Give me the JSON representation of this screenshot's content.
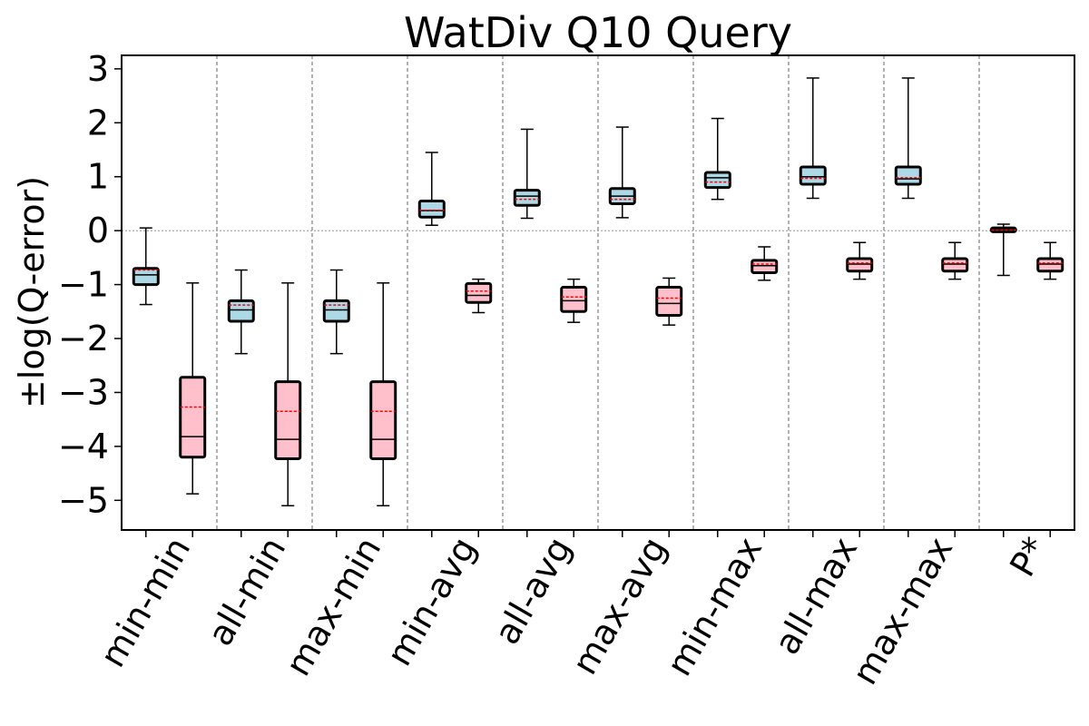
{
  "chart_data": {
    "type": "box",
    "title": "WatDiv Q10 Query",
    "ylabel": "±log(Q-error)",
    "xlabel": "",
    "ylim": [
      -5.55,
      3.25
    ],
    "yticks": [
      3,
      2,
      1,
      0,
      -1,
      -2,
      -3,
      -4,
      -5
    ],
    "ytick_labels": [
      "3",
      "2",
      "1",
      "0",
      "−1",
      "−2",
      "−3",
      "−4",
      "−5"
    ],
    "grid": false,
    "zero_line": true,
    "colors": {
      "over": "#add8e6",
      "under": "#ffc0cb",
      "median": "#000000",
      "mean": "#ff0000",
      "separator": "#808080"
    },
    "categories": [
      "min-min",
      "all-min",
      "max-min",
      "min-avg",
      "all-avg",
      "max-avg",
      "min-max",
      "all-max",
      "max-max",
      "P*"
    ],
    "series": [
      {
        "boxes": [
          {
            "whisker_low": -1.37,
            "q1": -1.0,
            "median": -0.82,
            "mean": -0.73,
            "q3": -0.7,
            "whisker_high": 0.05
          },
          {
            "whisker_low": -2.28,
            "q1": -1.68,
            "median": -1.47,
            "mean": -1.38,
            "q3": -1.3,
            "whisker_high": -0.73
          },
          {
            "whisker_low": -2.28,
            "q1": -1.68,
            "median": -1.47,
            "mean": -1.38,
            "q3": -1.3,
            "whisker_high": -0.73
          },
          {
            "whisker_low": 0.1,
            "q1": 0.25,
            "median": 0.37,
            "mean": 0.38,
            "q3": 0.55,
            "whisker_high": 1.45
          },
          {
            "whisker_low": 0.23,
            "q1": 0.47,
            "median": 0.64,
            "mean": 0.58,
            "q3": 0.75,
            "whisker_high": 1.88
          },
          {
            "whisker_low": 0.24,
            "q1": 0.5,
            "median": 0.64,
            "mean": 0.58,
            "q3": 0.78,
            "whisker_high": 1.92
          },
          {
            "whisker_low": 0.58,
            "q1": 0.8,
            "median": 0.98,
            "mean": 0.9,
            "q3": 1.08,
            "whisker_high": 2.08
          },
          {
            "whisker_low": 0.6,
            "q1": 0.86,
            "median": 1.0,
            "mean": 0.97,
            "q3": 1.18,
            "whisker_high": 2.83
          },
          {
            "whisker_low": 0.6,
            "q1": 0.86,
            "median": 0.96,
            "mean": 0.98,
            "q3": 1.18,
            "whisker_high": 2.83
          },
          {
            "whisker_low": -0.83,
            "q1": -0.02,
            "median": 0.02,
            "mean": 0.01,
            "q3": 0.05,
            "whisker_high": 0.12
          }
        ]
      },
      {
        "boxes": [
          {
            "whisker_low": -4.88,
            "q1": -4.2,
            "median": -3.82,
            "mean": -3.27,
            "q3": -2.72,
            "whisker_high": -0.97
          },
          {
            "whisker_low": -5.1,
            "q1": -4.23,
            "median": -3.87,
            "mean": -3.35,
            "q3": -2.8,
            "whisker_high": -0.97
          },
          {
            "whisker_low": -5.1,
            "q1": -4.23,
            "median": -3.87,
            "mean": -3.35,
            "q3": -2.8,
            "whisker_high": -0.97
          },
          {
            "whisker_low": -1.52,
            "q1": -1.33,
            "median": -1.2,
            "mean": -1.12,
            "q3": -0.98,
            "whisker_high": -0.9
          },
          {
            "whisker_low": -1.7,
            "q1": -1.5,
            "median": -1.3,
            "mean": -1.23,
            "q3": -1.05,
            "whisker_high": -0.9
          },
          {
            "whisker_low": -1.75,
            "q1": -1.57,
            "median": -1.35,
            "mean": -1.25,
            "q3": -1.05,
            "whisker_high": -0.88
          },
          {
            "whisker_low": -0.92,
            "q1": -0.78,
            "median": -0.65,
            "mean": -0.62,
            "q3": -0.55,
            "whisker_high": -0.3
          },
          {
            "whisker_low": -0.9,
            "q1": -0.75,
            "median": -0.62,
            "mean": -0.6,
            "q3": -0.52,
            "whisker_high": -0.22
          },
          {
            "whisker_low": -0.9,
            "q1": -0.75,
            "median": -0.62,
            "mean": -0.6,
            "q3": -0.52,
            "whisker_high": -0.22
          },
          {
            "whisker_low": -0.9,
            "q1": -0.75,
            "median": -0.62,
            "mean": -0.6,
            "q3": -0.52,
            "whisker_high": -0.22
          }
        ]
      }
    ]
  }
}
